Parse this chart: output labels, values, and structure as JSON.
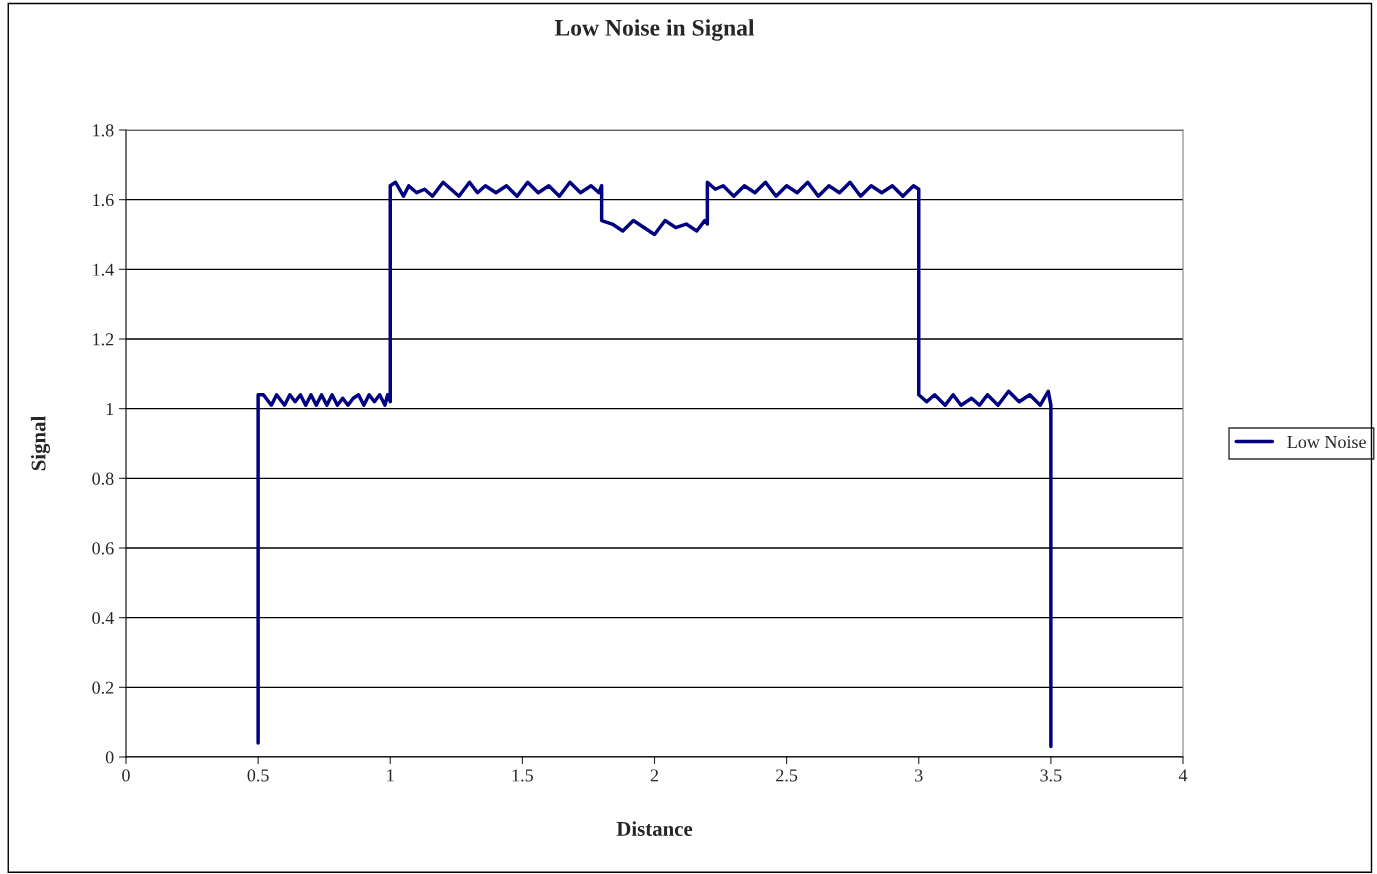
{
  "chart_data": {
    "type": "line",
    "title": "Low Noise in Signal",
    "xlabel": "Distance",
    "ylabel": "Signal",
    "series": [
      {
        "name": "Low Noise",
        "color": "#000080",
        "x": [
          0.5,
          0.5,
          0.52,
          0.55,
          0.57,
          0.6,
          0.62,
          0.64,
          0.66,
          0.68,
          0.7,
          0.72,
          0.74,
          0.76,
          0.78,
          0.8,
          0.82,
          0.84,
          0.86,
          0.88,
          0.9,
          0.92,
          0.94,
          0.96,
          0.98,
          0.99,
          1.0,
          1.0,
          1.02,
          1.05,
          1.07,
          1.1,
          1.13,
          1.16,
          1.2,
          1.23,
          1.26,
          1.3,
          1.33,
          1.36,
          1.4,
          1.44,
          1.48,
          1.52,
          1.56,
          1.6,
          1.64,
          1.68,
          1.72,
          1.76,
          1.79,
          1.8,
          1.8,
          1.84,
          1.88,
          1.92,
          1.96,
          2.0,
          2.04,
          2.08,
          2.12,
          2.16,
          2.19,
          2.2,
          2.2,
          2.23,
          2.26,
          2.3,
          2.34,
          2.38,
          2.42,
          2.46,
          2.5,
          2.54,
          2.58,
          2.62,
          2.66,
          2.7,
          2.74,
          2.78,
          2.82,
          2.86,
          2.9,
          2.94,
          2.98,
          3.0,
          3.0,
          3.03,
          3.06,
          3.1,
          3.13,
          3.16,
          3.2,
          3.23,
          3.26,
          3.3,
          3.34,
          3.38,
          3.42,
          3.46,
          3.49,
          3.5,
          3.5
        ],
        "values": [
          0.04,
          1.04,
          1.04,
          1.01,
          1.04,
          1.01,
          1.04,
          1.02,
          1.04,
          1.01,
          1.04,
          1.01,
          1.04,
          1.01,
          1.04,
          1.01,
          1.03,
          1.01,
          1.03,
          1.04,
          1.01,
          1.04,
          1.02,
          1.04,
          1.01,
          1.04,
          1.02,
          1.64,
          1.65,
          1.61,
          1.64,
          1.62,
          1.63,
          1.61,
          1.65,
          1.63,
          1.61,
          1.65,
          1.62,
          1.64,
          1.62,
          1.64,
          1.61,
          1.65,
          1.62,
          1.64,
          1.61,
          1.65,
          1.62,
          1.64,
          1.62,
          1.64,
          1.54,
          1.53,
          1.51,
          1.54,
          1.52,
          1.5,
          1.54,
          1.52,
          1.53,
          1.51,
          1.54,
          1.53,
          1.65,
          1.63,
          1.64,
          1.61,
          1.64,
          1.62,
          1.65,
          1.61,
          1.64,
          1.62,
          1.65,
          1.61,
          1.64,
          1.62,
          1.65,
          1.61,
          1.64,
          1.62,
          1.64,
          1.61,
          1.64,
          1.63,
          1.04,
          1.02,
          1.04,
          1.01,
          1.04,
          1.01,
          1.03,
          1.01,
          1.04,
          1.01,
          1.05,
          1.02,
          1.04,
          1.01,
          1.05,
          1.01,
          0.03
        ]
      }
    ],
    "xlim": [
      0,
      4
    ],
    "xticks": [
      0,
      0.5,
      1,
      1.5,
      2,
      2.5,
      3,
      3.5,
      4
    ],
    "ylim": [
      0,
      1.8
    ],
    "yticks": [
      0,
      0.2,
      0.4,
      0.6,
      0.8,
      1,
      1.2,
      1.4,
      1.6,
      1.8
    ],
    "grid": "y",
    "legend": "right"
  }
}
